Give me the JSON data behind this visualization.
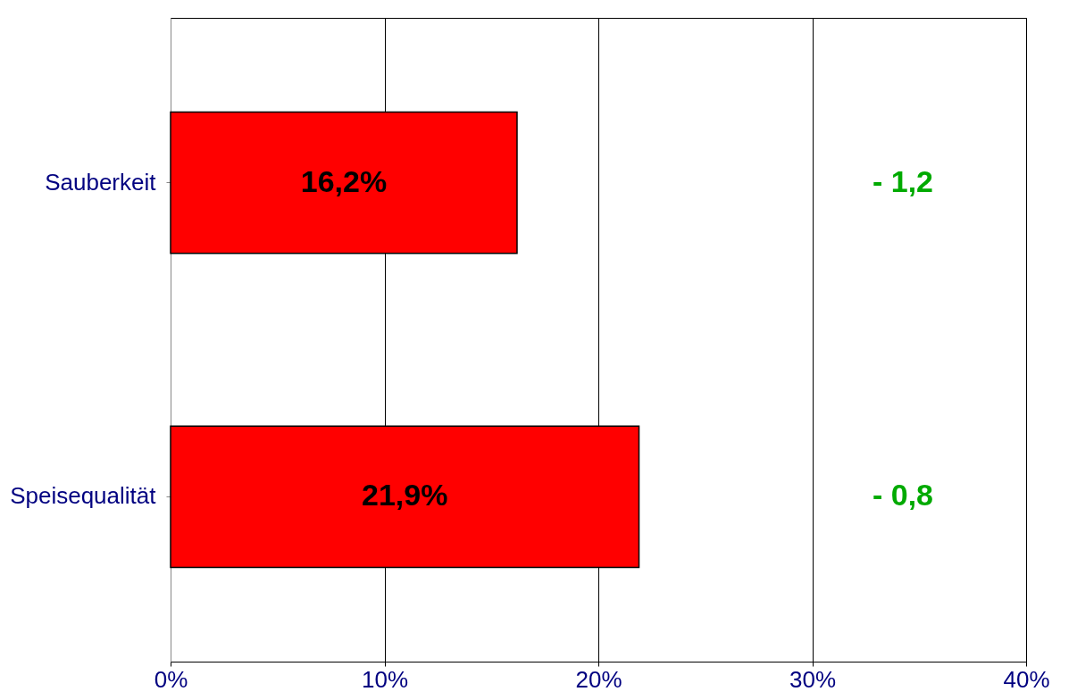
{
  "chart_data": {
    "type": "bar",
    "orientation": "horizontal",
    "categories": [
      "Sauberkeit",
      "Speisequalität"
    ],
    "values": [
      16.2,
      21.9
    ],
    "value_labels": [
      "16,2%",
      "21,9%"
    ],
    "color": "#ff0000",
    "xlim": [
      0,
      40
    ],
    "xticks": [
      {
        "value": 0,
        "label": "0%"
      },
      {
        "value": 10,
        "label": "10%"
      },
      {
        "value": 20,
        "label": "20%"
      },
      {
        "value": 30,
        "label": "30%"
      },
      {
        "value": 40,
        "label": "40%"
      }
    ],
    "grid": "x",
    "annotations": [
      "- 1,2",
      "- 0,8"
    ]
  }
}
